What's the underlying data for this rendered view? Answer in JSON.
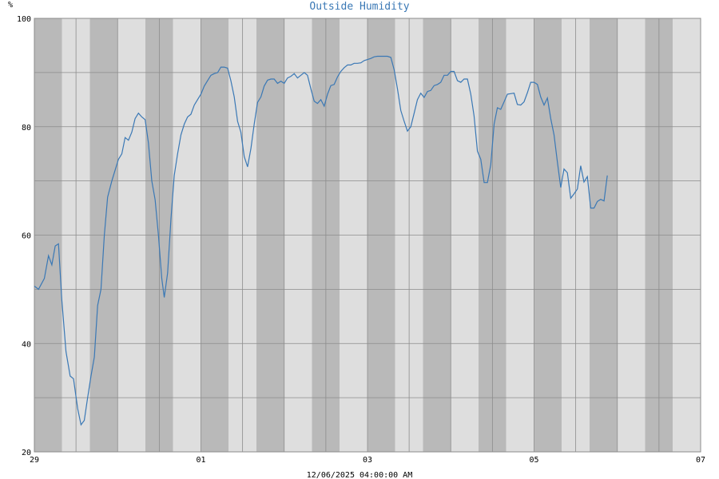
{
  "chart_data": {
    "type": "line",
    "title": "Outside Humidity",
    "ylabel": "%",
    "xlabel": "12/06/2025 04:00:00 AM",
    "ylim": [
      20,
      100
    ],
    "yticks": [
      20,
      40,
      60,
      80,
      100
    ],
    "xlim_days": [
      0,
      8
    ],
    "xticks": [
      {
        "day": 0,
        "label": "29"
      },
      {
        "day": 2,
        "label": "01"
      },
      {
        "day": 4,
        "label": "03"
      },
      {
        "day": 6,
        "label": "05"
      },
      {
        "day": 8,
        "label": "07"
      }
    ],
    "grid": true,
    "colors": {
      "line": "#3a78b5",
      "band_dark": "#b9b9b9",
      "band_light": "#dedede",
      "grid": "#8c8c8c"
    },
    "series": [
      {
        "name": "",
        "points": [
          [
            0.0,
            50.6
          ],
          [
            0.05,
            50.0
          ],
          [
            0.12,
            52.0
          ],
          [
            0.17,
            56.2
          ],
          [
            0.21,
            54.5
          ],
          [
            0.25,
            58.0
          ],
          [
            0.29,
            58.4
          ],
          [
            0.33,
            48.0
          ],
          [
            0.38,
            38.5
          ],
          [
            0.43,
            34.0
          ],
          [
            0.47,
            33.5
          ],
          [
            0.52,
            28.0
          ],
          [
            0.56,
            25.0
          ],
          [
            0.6,
            25.8
          ],
          [
            0.64,
            30.0
          ],
          [
            0.68,
            34.0
          ],
          [
            0.72,
            37.5
          ],
          [
            0.76,
            47.0
          ],
          [
            0.8,
            50.0
          ],
          [
            0.84,
            60.0
          ],
          [
            0.88,
            67.0
          ],
          [
            0.93,
            70.0
          ],
          [
            0.97,
            72.0
          ],
          [
            1.01,
            74.0
          ],
          [
            1.05,
            75.0
          ],
          [
            1.09,
            78.0
          ],
          [
            1.13,
            77.5
          ],
          [
            1.17,
            79.0
          ],
          [
            1.21,
            81.5
          ],
          [
            1.25,
            82.5
          ],
          [
            1.29,
            81.8
          ],
          [
            1.33,
            81.3
          ],
          [
            1.37,
            77.0
          ],
          [
            1.41,
            70.0
          ],
          [
            1.45,
            66.5
          ],
          [
            1.49,
            60.0
          ],
          [
            1.53,
            52.0
          ],
          [
            1.56,
            48.5
          ],
          [
            1.6,
            53.0
          ],
          [
            1.64,
            63.0
          ],
          [
            1.68,
            71.0
          ],
          [
            1.72,
            75.0
          ],
          [
            1.76,
            78.5
          ],
          [
            1.8,
            80.5
          ],
          [
            1.84,
            81.8
          ],
          [
            1.88,
            82.3
          ],
          [
            1.92,
            84.0
          ],
          [
            1.96,
            85.0
          ],
          [
            2.0,
            86.0
          ],
          [
            2.04,
            87.5
          ],
          [
            2.08,
            88.5
          ],
          [
            2.12,
            89.5
          ],
          [
            2.16,
            89.8
          ],
          [
            2.2,
            90.0
          ],
          [
            2.24,
            91.0
          ],
          [
            2.28,
            91.0
          ],
          [
            2.32,
            90.8
          ],
          [
            2.36,
            88.5
          ],
          [
            2.4,
            85.5
          ],
          [
            2.44,
            81.0
          ],
          [
            2.48,
            79.0
          ],
          [
            2.52,
            74.5
          ],
          [
            2.56,
            72.6
          ],
          [
            2.6,
            76.0
          ],
          [
            2.64,
            80.5
          ],
          [
            2.68,
            84.5
          ],
          [
            2.72,
            85.5
          ],
          [
            2.76,
            87.5
          ],
          [
            2.8,
            88.6
          ],
          [
            2.84,
            88.8
          ],
          [
            2.88,
            88.8
          ],
          [
            2.92,
            88.0
          ],
          [
            2.96,
            88.4
          ],
          [
            3.0,
            88.0
          ],
          [
            3.04,
            89.0
          ],
          [
            3.08,
            89.3
          ],
          [
            3.12,
            89.8
          ],
          [
            3.16,
            89.0
          ],
          [
            3.2,
            89.5
          ],
          [
            3.24,
            90.0
          ],
          [
            3.28,
            89.5
          ],
          [
            3.32,
            87.0
          ],
          [
            3.36,
            84.7
          ],
          [
            3.4,
            84.3
          ],
          [
            3.44,
            85.0
          ],
          [
            3.48,
            83.8
          ],
          [
            3.52,
            86.0
          ],
          [
            3.56,
            87.6
          ],
          [
            3.6,
            87.8
          ],
          [
            3.64,
            89.2
          ],
          [
            3.68,
            90.2
          ],
          [
            3.72,
            90.9
          ],
          [
            3.76,
            91.4
          ],
          [
            3.8,
            91.4
          ],
          [
            3.84,
            91.7
          ],
          [
            3.88,
            91.7
          ],
          [
            3.92,
            91.8
          ],
          [
            3.96,
            92.2
          ],
          [
            4.0,
            92.4
          ],
          [
            4.04,
            92.6
          ],
          [
            4.08,
            92.9
          ],
          [
            4.12,
            93.0
          ],
          [
            4.16,
            93.0
          ],
          [
            4.2,
            93.0
          ],
          [
            4.24,
            93.0
          ],
          [
            4.28,
            92.8
          ],
          [
            4.32,
            90.5
          ],
          [
            4.36,
            87.0
          ],
          [
            4.4,
            83.0
          ],
          [
            4.44,
            81.0
          ],
          [
            4.48,
            79.2
          ],
          [
            4.52,
            80.0
          ],
          [
            4.56,
            82.5
          ],
          [
            4.6,
            85.0
          ],
          [
            4.64,
            86.2
          ],
          [
            4.68,
            85.4
          ],
          [
            4.72,
            86.5
          ],
          [
            4.76,
            86.7
          ],
          [
            4.8,
            87.6
          ],
          [
            4.84,
            87.8
          ],
          [
            4.88,
            88.2
          ],
          [
            4.92,
            89.5
          ],
          [
            4.96,
            89.5
          ],
          [
            5.0,
            90.2
          ],
          [
            5.04,
            90.2
          ],
          [
            5.08,
            88.5
          ],
          [
            5.12,
            88.2
          ],
          [
            5.16,
            88.8
          ],
          [
            5.2,
            88.8
          ],
          [
            5.24,
            86.0
          ],
          [
            5.28,
            82.0
          ],
          [
            5.32,
            75.5
          ],
          [
            5.36,
            74.0
          ],
          [
            5.4,
            69.7
          ],
          [
            5.44,
            69.7
          ],
          [
            5.48,
            73.0
          ],
          [
            5.52,
            80.5
          ],
          [
            5.56,
            83.5
          ],
          [
            5.6,
            83.2
          ],
          [
            5.64,
            84.6
          ],
          [
            5.68,
            86.0
          ],
          [
            5.72,
            86.1
          ],
          [
            5.76,
            86.2
          ],
          [
            5.8,
            84.1
          ],
          [
            5.84,
            84.0
          ],
          [
            5.88,
            84.6
          ],
          [
            5.92,
            86.3
          ],
          [
            5.96,
            88.2
          ],
          [
            6.0,
            88.2
          ],
          [
            6.04,
            87.8
          ],
          [
            6.08,
            85.5
          ],
          [
            6.12,
            84.0
          ],
          [
            6.16,
            85.3
          ],
          [
            6.2,
            81.5
          ],
          [
            6.24,
            78.5
          ],
          [
            6.28,
            73.5
          ],
          [
            6.32,
            68.8
          ],
          [
            6.36,
            72.2
          ],
          [
            6.4,
            71.5
          ],
          [
            6.44,
            66.8
          ],
          [
            6.48,
            67.6
          ],
          [
            6.52,
            68.5
          ],
          [
            6.56,
            72.8
          ],
          [
            6.6,
            69.8
          ],
          [
            6.64,
            70.8
          ],
          [
            6.68,
            65.0
          ],
          [
            6.72,
            65.0
          ],
          [
            6.76,
            66.2
          ],
          [
            6.8,
            66.6
          ],
          [
            6.84,
            66.3
          ],
          [
            6.88,
            71.0
          ]
        ]
      }
    ]
  }
}
